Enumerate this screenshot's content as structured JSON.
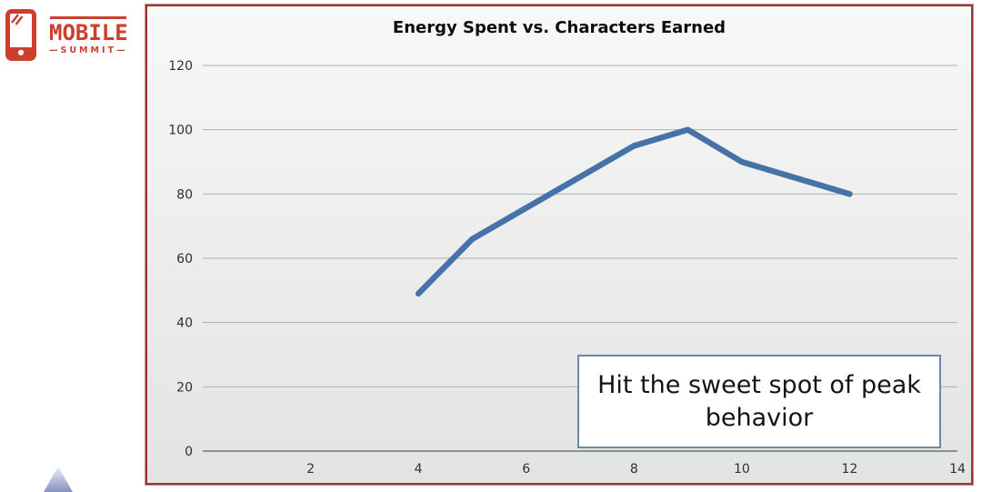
{
  "logo": {
    "brand": "MOBILE",
    "sub_brand": "—SUMMIT—",
    "color": "#ce3e2c"
  },
  "chart_data": {
    "type": "line",
    "title": "Energy Spent vs. Characters Earned",
    "xlabel": "",
    "ylabel": "",
    "x": [
      4,
      5,
      8,
      9,
      10,
      12
    ],
    "y": [
      49,
      66,
      95,
      100,
      90,
      80
    ],
    "xlim": [
      0,
      14
    ],
    "ylim": [
      0,
      120
    ],
    "x_ticks": [
      2,
      4,
      6,
      8,
      10,
      12,
      14
    ],
    "y_ticks": [
      0,
      20,
      40,
      60,
      80,
      100,
      120
    ],
    "grid": "horizontal",
    "legend_position": "none",
    "line_color": "#4572a7",
    "gridline_color": "#aeaeae",
    "baseline_color": "#8f8f8f",
    "tick_label_color": "#2f2f2f",
    "frame_border_color": "#943634",
    "annotation": {
      "text": "Hit the sweet spot of peak behavior",
      "border_color": "#6e88a9"
    }
  }
}
